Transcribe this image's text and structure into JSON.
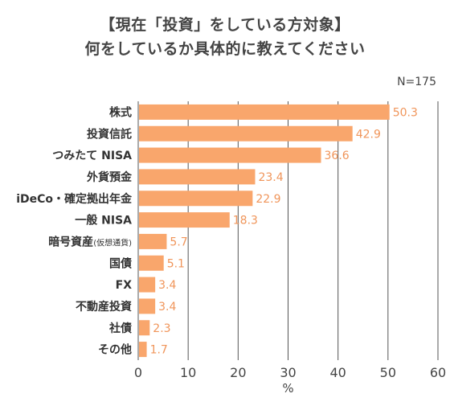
{
  "title_line1": "【現在「投資」をしている方対象】",
  "title_line2": "何をしているか具体的に教えてください",
  "chart_data": {
    "type": "bar",
    "orientation": "horizontal",
    "sample_size": "N=175",
    "xlabel": "%",
    "xlim": [
      0,
      60
    ],
    "xticks": [
      0,
      10,
      20,
      30,
      40,
      50,
      60
    ],
    "grid": true,
    "bar_color": "#F9A66C",
    "label_color": "#F0955A",
    "categories": [
      {
        "label": "株式",
        "sub": ""
      },
      {
        "label": "投資信託",
        "sub": ""
      },
      {
        "label": "つみたて NISA",
        "sub": ""
      },
      {
        "label": "外貨預金",
        "sub": ""
      },
      {
        "label": "iDeCo・確定拠出年金",
        "sub": ""
      },
      {
        "label": "一般 NISA",
        "sub": ""
      },
      {
        "label": "暗号資産",
        "sub": "(仮想通貨)"
      },
      {
        "label": "国債",
        "sub": ""
      },
      {
        "label": "FX",
        "sub": ""
      },
      {
        "label": "不動産投資",
        "sub": ""
      },
      {
        "label": "社債",
        "sub": ""
      },
      {
        "label": "その他",
        "sub": ""
      }
    ],
    "values": [
      50.3,
      42.9,
      36.6,
      23.4,
      22.9,
      18.3,
      5.7,
      5.1,
      3.4,
      3.4,
      2.3,
      1.7
    ]
  }
}
